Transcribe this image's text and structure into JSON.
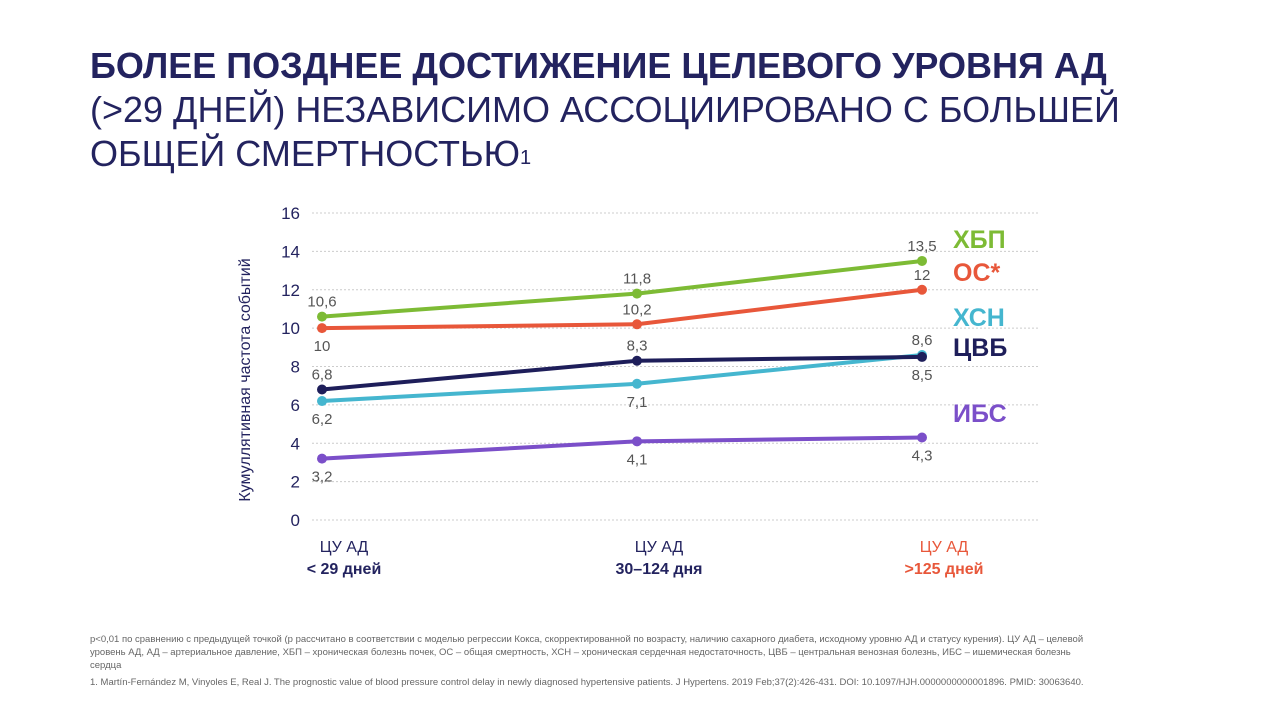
{
  "title": {
    "line1": "БОЛЕЕ ПОЗДНЕЕ ДОСТИЖЕНИЕ ЦЕЛЕВОГО УРОВНЯ АД",
    "line2": "(>29 ДНЕЙ) НЕЗАВИСИМО АССОЦИИРОВАНО С БОЛЬШЕЙ ОБЩЕЙ СМЕРТНОСТЬЮ",
    "sup": "1"
  },
  "chart_data": {
    "type": "line",
    "ylabel": "Кумуллятивная частота событий",
    "ylim": [
      0,
      16
    ],
    "yticks": [
      "0",
      "2",
      "4",
      "6",
      "8",
      "10",
      "12",
      "14",
      "16"
    ],
    "grid": true,
    "legend_placement": "right",
    "categories": [
      {
        "line1": "ЦУ АД",
        "line2": "< 29 дней",
        "color": "#23235f"
      },
      {
        "line1": "ЦУ АД",
        "line2": "30–124 дня",
        "color": "#23235f"
      },
      {
        "line1": "ЦУ АД",
        "line2": ">125 дней",
        "color": "#e8573a"
      }
    ],
    "series": [
      {
        "name": "ХБП",
        "color": "#7dbb35",
        "values": [
          10.6,
          11.8,
          13.5
        ],
        "labels": [
          "10,6",
          "11,8",
          "13,5"
        ]
      },
      {
        "name": "ОС*",
        "color": "#e8573a",
        "values": [
          10,
          10.2,
          12
        ],
        "labels": [
          "10",
          "10,2",
          "12"
        ]
      },
      {
        "name": "ХСН",
        "color": "#45b6cf",
        "values": [
          6.2,
          7.1,
          8.6
        ],
        "labels": [
          "6,2",
          "7,1",
          "8,6"
        ]
      },
      {
        "name": "ЦВБ",
        "color": "#1e1e5a",
        "values": [
          6.8,
          8.3,
          8.5
        ],
        "labels": [
          "6,8",
          "8,3",
          "8,5"
        ]
      },
      {
        "name": "ИБС",
        "color": "#7b4fc9",
        "values": [
          3.2,
          4.1,
          4.3
        ],
        "labels": [
          "3,2",
          "4,1",
          "4,3"
        ]
      }
    ]
  },
  "footnotes": {
    "note": "p<0,01 по сравнению с предыдущей точкой (р рассчитано в соответствии с моделью регрессии Кокса, скорректированной по возрасту, наличию сахарного диабета, исходному уровню АД и статусу курения). ЦУ АД – целевой уровень АД, АД – артериальное давление, ХБП – хроническая болезнь почек, ОС – общая смертность, ХСН – хроническая сердечная недостаточность, ЦВБ – центральная венозная болезнь, ИБС – ишемическая болезнь сердца",
    "reference": "1. Martín-Fernández M, Vinyoles E, Real J. The prognostic value of blood pressure control delay in newly diagnosed hypertensive patients. J Hypertens. 2019 Feb;37(2):426-431. DOI: 10.1097/HJH.0000000000001896. PMID: 30063640."
  }
}
